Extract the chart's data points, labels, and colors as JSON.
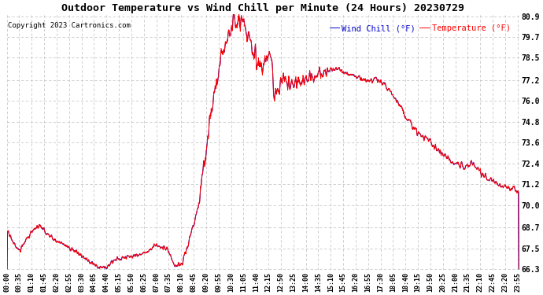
{
  "title": "Outdoor Temperature vs Wind Chill per Minute (24 Hours) 20230729",
  "copyright": "Copyright 2023 Cartronics.com",
  "legend_wind_chill": "Wind Chill (°F)",
  "legend_temperature": "Temperature (°F)",
  "wind_chill_color": "#0000cc",
  "temperature_color": "#ff0000",
  "background_color": "#ffffff",
  "grid_color": "#c8c8c8",
  "title_color": "#000000",
  "copyright_color": "#000000",
  "ylim_min": 66.3,
  "ylim_max": 80.9,
  "yticks": [
    80.9,
    79.7,
    78.5,
    77.2,
    76.0,
    74.8,
    73.6,
    72.4,
    71.2,
    70.0,
    68.7,
    67.5,
    66.3
  ]
}
